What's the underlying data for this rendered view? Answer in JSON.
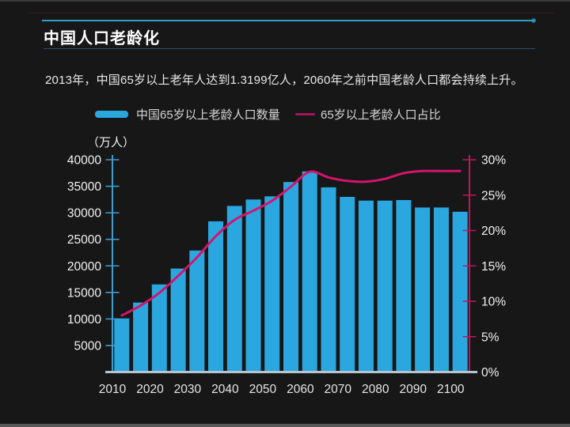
{
  "header": {
    "title": "中国人口老龄化",
    "subtitle": "2013年，中国65岁以上老年人达到1.3199亿人，2060年之前中国老龄人口都会持续上升。"
  },
  "legend": {
    "bar_label": "中国65岁以上老龄人口数量",
    "line_label": "65岁以上老龄人口占比"
  },
  "colors": {
    "background": "#171717",
    "bar": "#2ba7e0",
    "line": "#d4146c",
    "left_axis": "#3f9ecf",
    "right_axis": "#c0155f",
    "baseline": "#b5c4cf",
    "text": "#f2f2f2",
    "title_rule": "#2f9ec9"
  },
  "chart_data": {
    "type": "bar",
    "title": "中国人口老龄化",
    "categories": [
      "2010",
      "2015",
      "2020",
      "2025",
      "2030",
      "2035",
      "2040",
      "2045",
      "2050",
      "2055",
      "2060",
      "2065",
      "2070",
      "2075",
      "2080",
      "2085",
      "2090",
      "2095",
      "2100"
    ],
    "series": [
      {
        "name": "中国65岁以上老龄人口数量",
        "type": "bar",
        "y_axis": "left",
        "unit": "万人",
        "values": [
          10100,
          13100,
          16500,
          19500,
          22900,
          28400,
          31300,
          32500,
          33100,
          35800,
          37800,
          34800,
          33000,
          32300,
          32300,
          32400,
          31000,
          31000,
          30200
        ]
      },
      {
        "name": "65岁以上老龄人口占比",
        "type": "line",
        "y_axis": "right",
        "unit": "%",
        "values": [
          8.0,
          9.4,
          11.2,
          13.6,
          16.2,
          19.2,
          21.5,
          22.8,
          24.2,
          26.2,
          28.3,
          27.5,
          27.0,
          26.9,
          27.3,
          28.1,
          28.4,
          28.4,
          28.4
        ]
      }
    ],
    "left_axis": {
      "unit_label": "（万人）",
      "min": 0,
      "max": 40000,
      "tick_step": 5000,
      "tick_labels": [
        "5000",
        "10000",
        "15000",
        "20000",
        "25000",
        "30000",
        "35000",
        "40000"
      ]
    },
    "right_axis": {
      "min": 0,
      "max": 30,
      "tick_step": 5,
      "tick_labels": [
        "0%",
        "5%",
        "10%",
        "15%",
        "20%",
        "25%",
        "30%"
      ]
    },
    "x_tick_labels": [
      "2010",
      "2020",
      "2030",
      "2040",
      "2050",
      "2060",
      "2070",
      "2080",
      "2090",
      "2100"
    ],
    "legend_position": "top",
    "grid": false
  }
}
